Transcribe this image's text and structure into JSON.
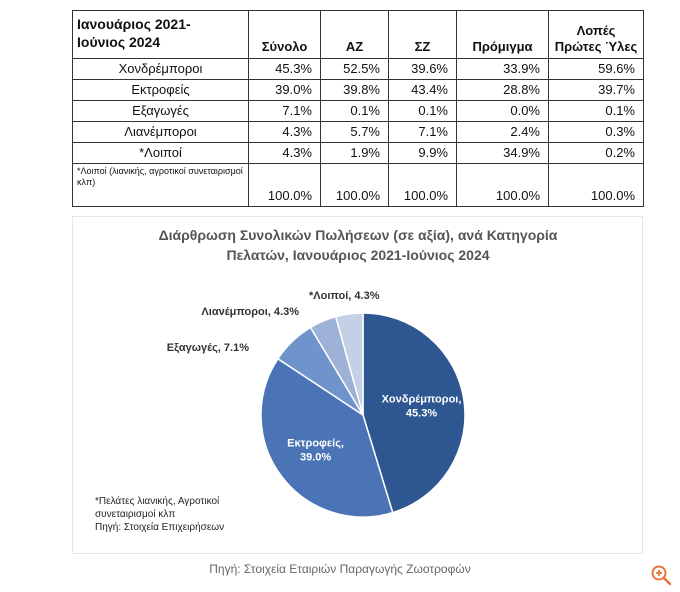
{
  "table": {
    "period_line1": "Ιανουάριος 2021-",
    "period_line2": "Ιούνιος 2024",
    "columns": [
      "Σύνολο",
      "ΑΖ",
      "ΣΖ",
      "Πρόμιγμα"
    ],
    "last_column_line1": "Λοπές",
    "last_column_line2": "Πρώτες Ύλες",
    "rows": [
      {
        "label": "Χονδρέμποροι",
        "values": [
          "45.3%",
          "52.5%",
          "39.6%",
          "33.9%",
          "59.6%"
        ]
      },
      {
        "label": "Εκτροφείς",
        "values": [
          "39.0%",
          "39.8%",
          "43.4%",
          "28.8%",
          "39.7%"
        ]
      },
      {
        "label": "Εξαγωγές",
        "values": [
          "7.1%",
          "0.1%",
          "0.1%",
          "0.0%",
          "0.1%"
        ]
      },
      {
        "label": "Λιανέμποροι",
        "values": [
          "4.3%",
          "5.7%",
          "7.1%",
          "2.4%",
          "0.3%"
        ]
      },
      {
        "label": "*Λοιποί",
        "values": [
          "4.3%",
          "1.9%",
          "9.9%",
          "34.9%",
          "0.2%"
        ]
      }
    ],
    "footnote": "*Λοιποί (λιανικής, αγροτικοί συνεταιρισμοί κλπ)",
    "totals": [
      "100.0%",
      "100.0%",
      "100.0%",
      "100.0%",
      "100.0%"
    ]
  },
  "chart_data": {
    "type": "pie",
    "title_line1": "Διάρθρωση Συνολικών Πωλήσεων (σε αξία), ανά Κατηγορία",
    "title_line2": "Πελατών, Ιανουάριος 2021-Ιούνιος 2024",
    "slices": [
      {
        "label": "Χονδρέμποροι",
        "value": 45.3,
        "value_label": "45.3%",
        "color": "#2e5691"
      },
      {
        "label": "Εκτροφείς",
        "value": 39.0,
        "value_label": "39.0%",
        "color": "#4a74b6"
      },
      {
        "label": "Εξαγωγές",
        "value": 7.1,
        "value_label": "7.1%",
        "color": "#6f93cb"
      },
      {
        "label": "Λιανέμποροι",
        "value": 4.3,
        "value_label": "4.3%",
        "color": "#9eb1d6"
      },
      {
        "label": "*Λοιποί",
        "value": 4.3,
        "value_label": "4.3%",
        "color": "#c4d0e6"
      }
    ],
    "note_lines": [
      "*Πελάτες λιανικής, Αγροτικοί",
      "συνεταιρισμοί κλπ",
      "Πηγή: Στοιχεία Επιχειρήσεων"
    ]
  },
  "caption": "Πηγή: Στοιχεία Εταιριών Παραγωγής Ζωοτροφών",
  "icons": {
    "zoom": "zoom-in-icon"
  }
}
